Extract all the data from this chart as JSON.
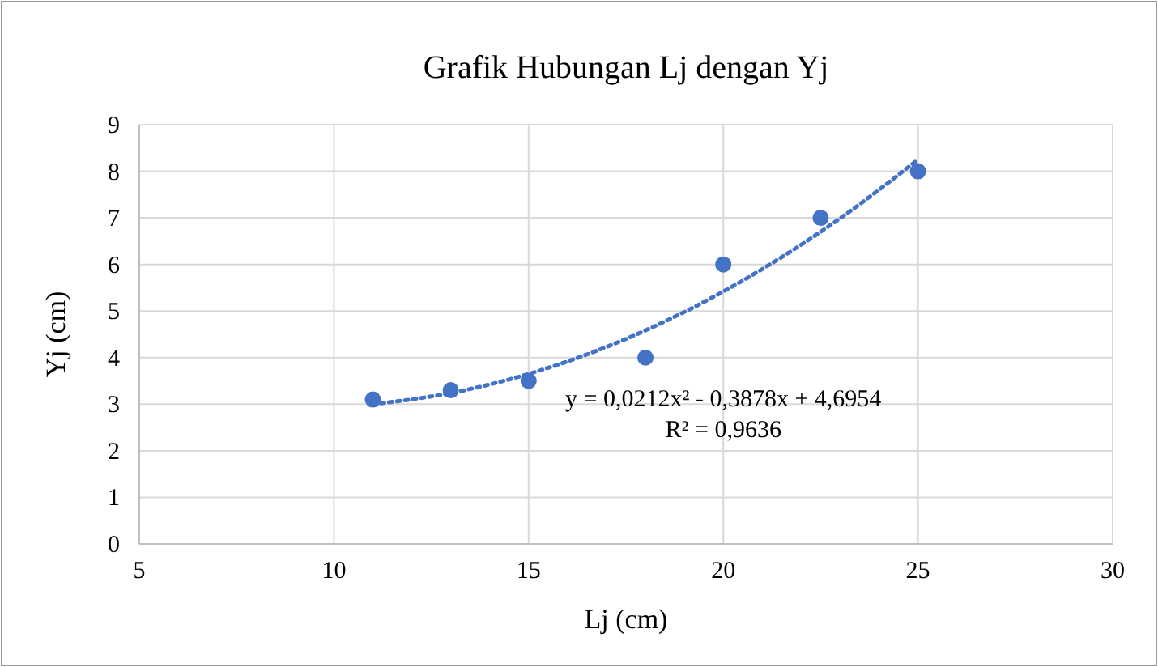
{
  "chart_data": {
    "type": "scatter",
    "title": "Grafik Hubungan Lj dengan Yj",
    "xlabel": "Lj (cm)",
    "ylabel": "Yj (cm)",
    "xlim": [
      5,
      30
    ],
    "xticks": [
      5,
      10,
      15,
      20,
      25,
      30
    ],
    "ylim": [
      0,
      9
    ],
    "yticks": [
      0,
      1,
      2,
      3,
      4,
      5,
      6,
      7,
      8,
      9
    ],
    "grid": true,
    "marker": "circle",
    "series": [
      {
        "color": "#4472c4",
        "x": [
          11,
          13,
          15,
          18,
          20,
          22.5,
          25
        ],
        "values": [
          3.1,
          3.3,
          3.5,
          4,
          6,
          7,
          8
        ]
      },
      {
        "type": "line",
        "color": "#4472c4",
        "line_style": "dotted",
        "marker": "none",
        "x": [
          11,
          13,
          15,
          17,
          19,
          21,
          23,
          25
        ],
        "values": [
          3.0,
          3.24,
          3.65,
          4.23,
          4.98,
          5.9,
          6.99,
          8.25
        ]
      }
    ],
    "annotations": [
      "y = 0,0212x² - 0,3878x + 4,6954",
      "R² = 0,9636"
    ]
  }
}
